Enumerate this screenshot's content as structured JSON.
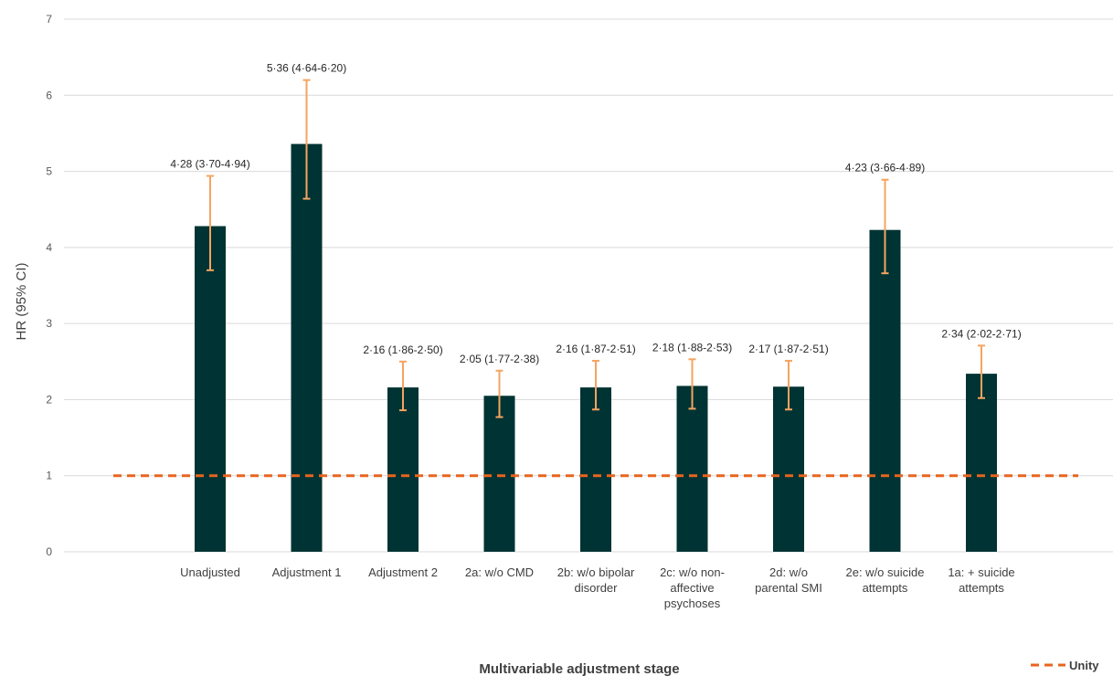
{
  "chart_data": {
    "type": "bar",
    "categories": [
      [
        "Unadjusted"
      ],
      [
        "Adjustment 1"
      ],
      [
        "Adjustment 2"
      ],
      [
        "2a: w/o CMD"
      ],
      [
        "2b: w/o bipolar",
        "disorder"
      ],
      [
        "2c: w/o non-",
        "affective",
        "psychoses"
      ],
      [
        "2d: w/o",
        "parental SMI"
      ],
      [
        "2e: w/o suicide",
        "attempts"
      ],
      [
        "1a: + suicide",
        "attempts"
      ]
    ],
    "values": [
      4.28,
      5.36,
      2.16,
      2.05,
      2.16,
      2.18,
      2.17,
      4.23,
      2.34
    ],
    "ci_lower": [
      3.7,
      4.64,
      1.86,
      1.77,
      1.87,
      1.88,
      1.87,
      3.66,
      2.02
    ],
    "ci_upper": [
      4.94,
      6.2,
      2.5,
      2.38,
      2.51,
      2.53,
      2.51,
      4.89,
      2.71
    ],
    "data_labels": [
      "4·28 (3·70-4·94)",
      "5·36 (4·64-6·20)",
      "2·16 (1·86-2·50)",
      "2·05 (1·77-2·38)",
      "2·16 (1·87-2·51)",
      "2·18 (1·88-2·53)",
      "2·17 (1·87-2·51)",
      "4·23 (3·66-4·89)",
      "2·34 (2·02-2·71)"
    ],
    "xlabel": "Multivariable adjustment stage",
    "ylabel": "HR (95% CI)",
    "ylim": [
      0,
      7
    ],
    "yticks": [
      "0",
      "1",
      "2",
      "3",
      "4",
      "5",
      "6",
      "7"
    ],
    "reference_line": {
      "value": 1,
      "label": "Unity"
    },
    "grid": true,
    "legend_position": "bottom-right",
    "colors": {
      "bar": "#003333",
      "error": "#f4a460",
      "reference": "#e8641e",
      "grid": "#d9d9d9"
    }
  }
}
